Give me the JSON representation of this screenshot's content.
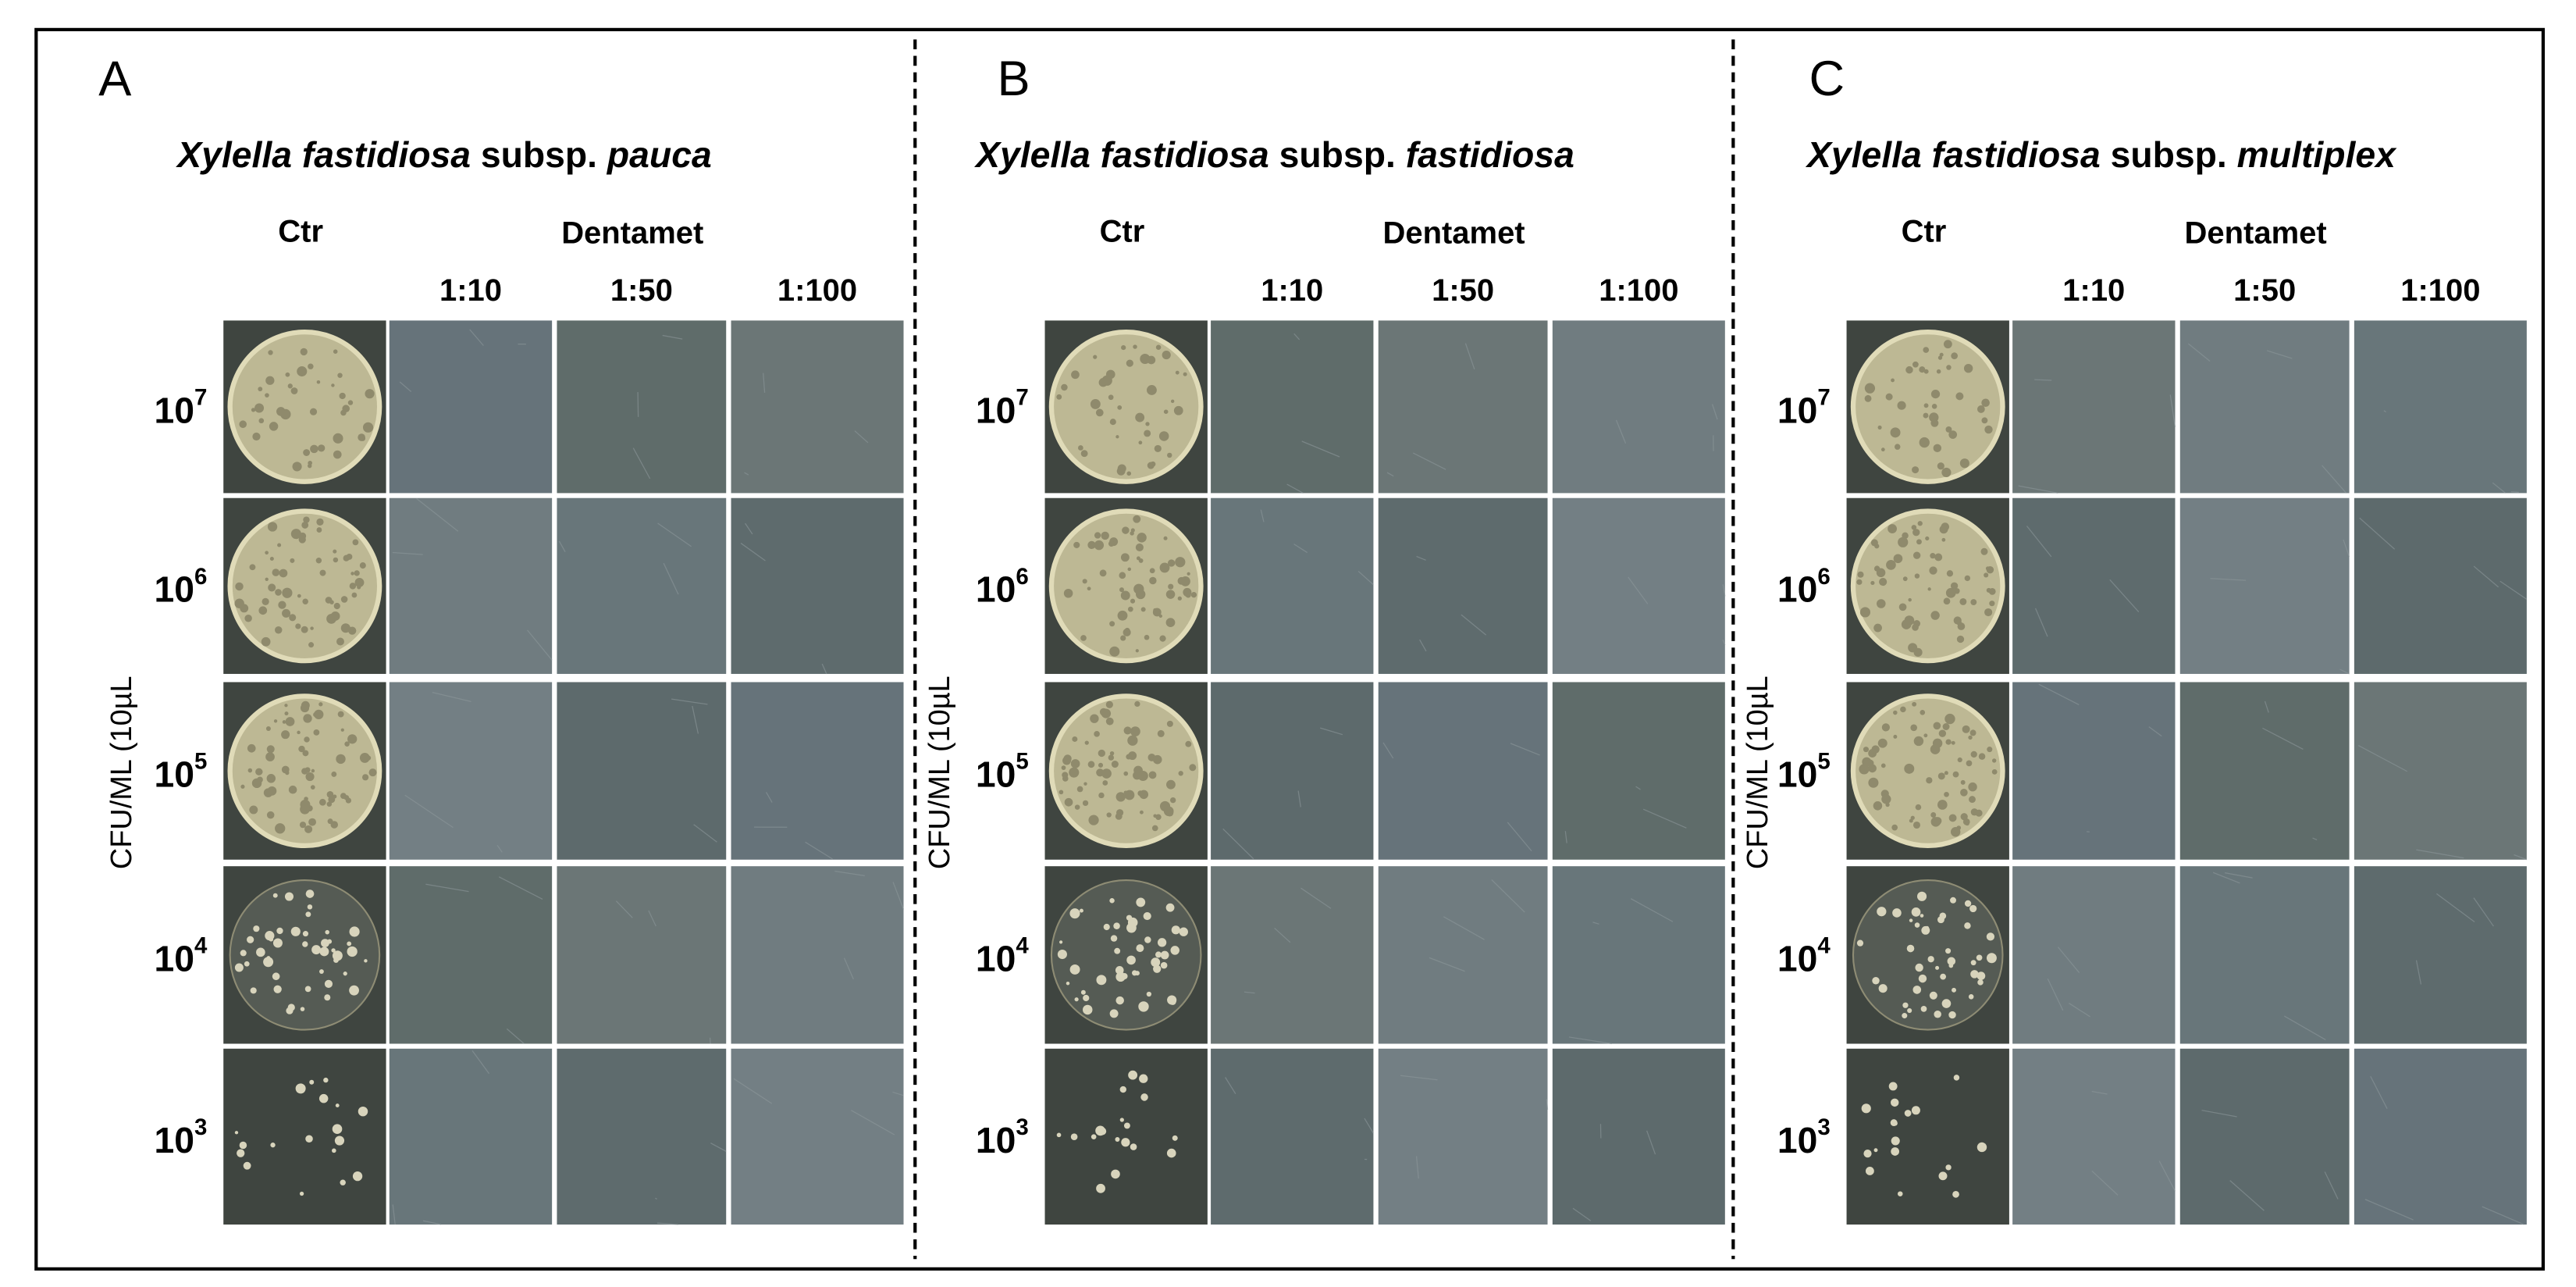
{
  "panels": [
    {
      "letter": "A",
      "title": [
        {
          "text": "Xylella fastidiosa",
          "italic": true
        },
        {
          "text": " subsp. ",
          "italic": false
        },
        {
          "text": "pauca",
          "italic": true
        }
      ],
      "control": "Ctr",
      "treatment": "Dentamet",
      "dilutions": [
        "1:10",
        "1:50",
        "1:100"
      ],
      "rows": [
        {
          "base": "10",
          "exp": "7"
        },
        {
          "base": "10",
          "exp": "6"
        },
        {
          "base": "10",
          "exp": "5"
        },
        {
          "base": "10",
          "exp": "4"
        },
        {
          "base": "10",
          "exp": "3"
        }
      ],
      "y_label": "CFU/ML (10µL"
    },
    {
      "letter": "B",
      "title": [
        {
          "text": "Xylella fastidiosa",
          "italic": true
        },
        {
          "text": " subsp. ",
          "italic": false
        },
        {
          "text": "fastidiosa",
          "italic": true
        }
      ],
      "control": "Ctr",
      "treatment": "Dentamet",
      "dilutions": [
        "1:10",
        "1:50",
        "1:100"
      ],
      "rows": [
        {
          "base": "10",
          "exp": "7"
        },
        {
          "base": "10",
          "exp": "6"
        },
        {
          "base": "10",
          "exp": "5"
        },
        {
          "base": "10",
          "exp": "4"
        },
        {
          "base": "10",
          "exp": "3"
        }
      ],
      "y_label": "CFU/ML (10µL"
    },
    {
      "letter": "C",
      "title": [
        {
          "text": "Xylella fastidiosa",
          "italic": true
        },
        {
          "text": " subsp. ",
          "italic": false
        },
        {
          "text": "multiplex",
          "italic": true
        }
      ],
      "control": "Ctr",
      "treatment": "Dentamet",
      "dilutions": [
        "1:10",
        "1:50",
        "1:100"
      ],
      "rows": [
        {
          "base": "10",
          "exp": "7"
        },
        {
          "base": "10",
          "exp": "6"
        },
        {
          "base": "10",
          "exp": "5"
        },
        {
          "base": "10",
          "exp": "4"
        },
        {
          "base": "10",
          "exp": "3"
        }
      ],
      "y_label": "CFU/ML (10µL"
    }
  ]
}
